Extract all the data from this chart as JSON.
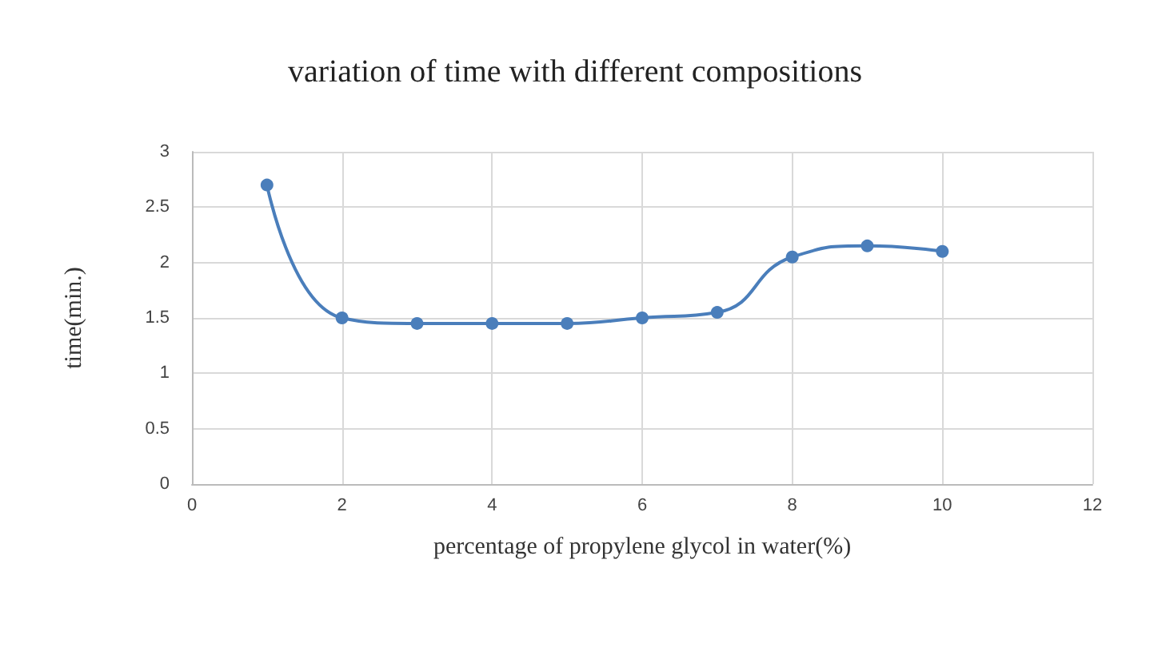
{
  "chart_data": {
    "type": "line",
    "title": "variation of time with different compositions",
    "xlabel": "percentage of propylene glycol in water(%)",
    "ylabel": "time(min.)",
    "x": [
      1,
      2,
      3,
      4,
      5,
      6,
      7,
      8,
      9,
      10
    ],
    "series": [
      {
        "color": "#4a7ebb",
        "values": [
          2.7,
          1.5,
          1.45,
          1.45,
          1.45,
          1.5,
          1.55,
          2.05,
          2.15,
          2.1
        ]
      }
    ],
    "xlim": [
      0,
      12
    ],
    "xticks": [
      0,
      2,
      4,
      6,
      8,
      10,
      12
    ],
    "ylim": [
      0,
      3
    ],
    "yticks": [
      0,
      0.5,
      1,
      1.5,
      2,
      2.5,
      3
    ],
    "grid": true,
    "marker": "circle",
    "line_style": "solid"
  }
}
